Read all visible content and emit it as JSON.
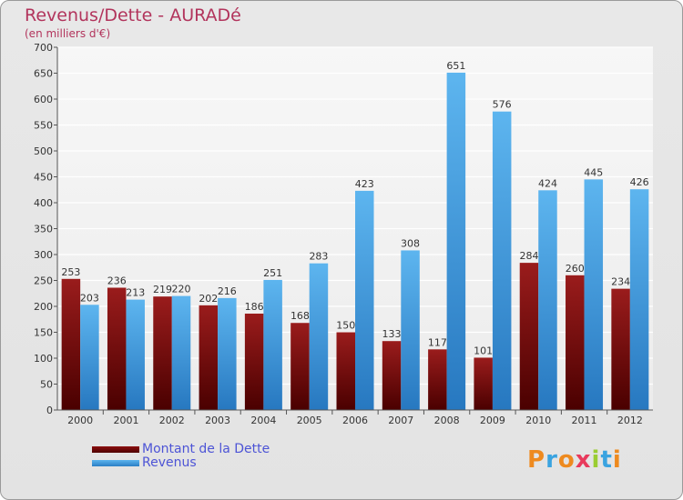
{
  "chart_data": {
    "type": "bar",
    "title": "Revenus/Dette - AURADé",
    "subtitle": "(en milliers d'€)",
    "categories": [
      "2000",
      "2001",
      "2002",
      "2003",
      "2004",
      "2005",
      "2006",
      "2007",
      "2008",
      "2009",
      "2010",
      "2011",
      "2012"
    ],
    "series": [
      {
        "name": "Montant de la Dette",
        "color": "#7a0a0a",
        "values": [
          253,
          236,
          219,
          202,
          186,
          168,
          150,
          133,
          117,
          101,
          284,
          260,
          234
        ]
      },
      {
        "name": "Revenus",
        "color": "#4ea6e6",
        "values": [
          203,
          213,
          220,
          216,
          251,
          283,
          423,
          308,
          651,
          576,
          424,
          445,
          426
        ]
      }
    ],
    "ylim": [
      0,
      700
    ],
    "ytick_step": 50,
    "grid": true,
    "legend_position": "bottom-left"
  },
  "brand": {
    "logo_text": "Proxiti",
    "logo_colors": [
      "#ee8a1f",
      "#3aa3e0",
      "#ee8a1f",
      "#e83a5c",
      "#9acd32",
      "#3aa3e0",
      "#ee8a1f"
    ]
  }
}
